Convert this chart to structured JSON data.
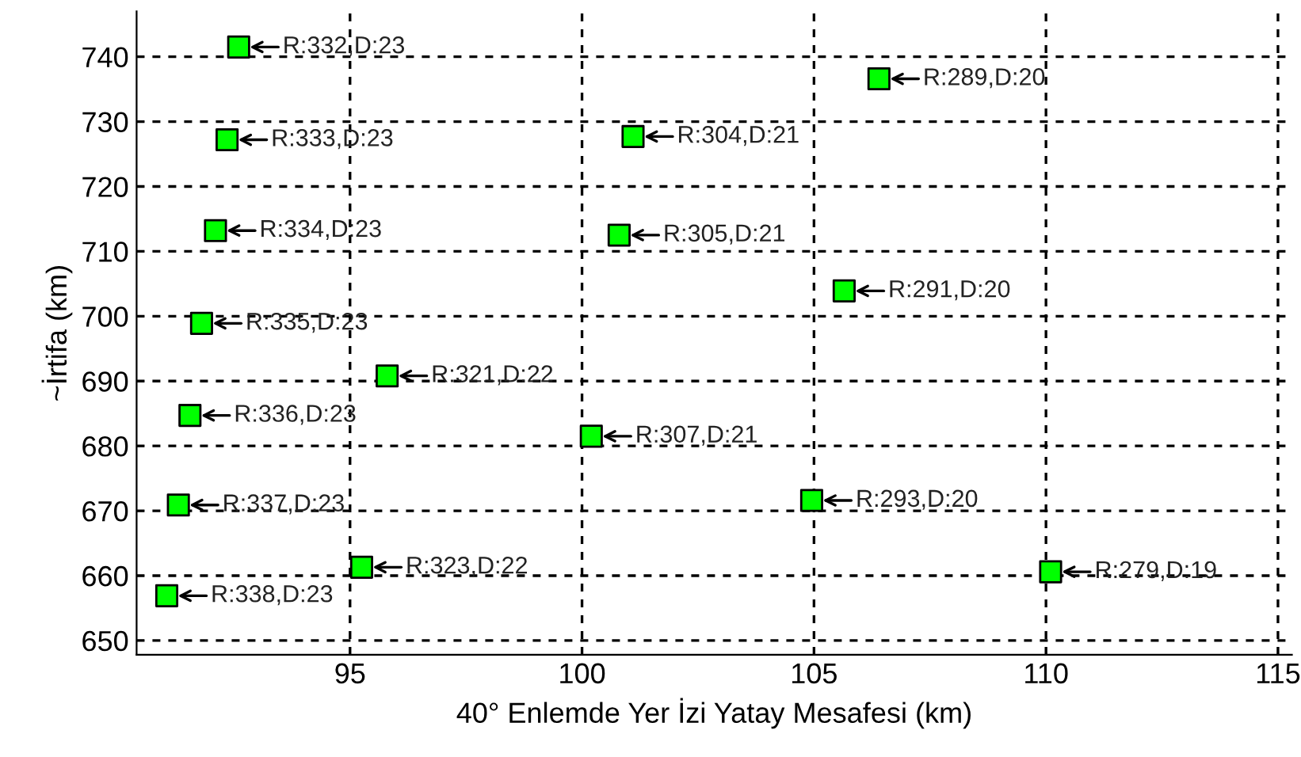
{
  "chart_data": {
    "type": "scatter",
    "xlabel": "40° Enlemde Yer İzi Yatay Mesafesi (km)",
    "ylabel": "~İrtifa (km)",
    "series": [
      {
        "color": "#00ff00",
        "x": [
          92.6,
          92.35,
          92.1,
          91.8,
          91.55,
          91.3,
          91.05,
          95.8,
          95.25,
          101.1,
          100.8,
          100.2,
          106.4,
          105.65,
          104.95,
          110.1
        ],
        "values": [
          741.5,
          727.2,
          713.2,
          698.9,
          684.7,
          670.9,
          656.9,
          690.8,
          661.3,
          727.7,
          712.5,
          681.5,
          736.6,
          703.9,
          671.6,
          660.6
        ]
      }
    ],
    "annotations": [
      {
        "text": "R:332,D:23",
        "x": 92.6,
        "y": 741.5
      },
      {
        "text": "R:333,D:23",
        "x": 92.35,
        "y": 727.2
      },
      {
        "text": "R:334,D:23",
        "x": 92.1,
        "y": 713.2
      },
      {
        "text": "R:335,D:23",
        "x": 91.8,
        "y": 698.9
      },
      {
        "text": "R:336,D:23",
        "x": 91.55,
        "y": 684.7
      },
      {
        "text": "R:337,D:23",
        "x": 91.3,
        "y": 670.9
      },
      {
        "text": "R:338,D:23",
        "x": 91.05,
        "y": 656.9
      },
      {
        "text": "R:321,D:22",
        "x": 95.8,
        "y": 690.8
      },
      {
        "text": "R:323,D:22",
        "x": 95.25,
        "y": 661.3
      },
      {
        "text": "R:304,D:21",
        "x": 101.1,
        "y": 727.7
      },
      {
        "text": "R:305,D:21",
        "x": 100.8,
        "y": 712.5
      },
      {
        "text": "R:307,D:21",
        "x": 100.2,
        "y": 681.5
      },
      {
        "text": "R:289,D:20",
        "x": 106.4,
        "y": 736.6
      },
      {
        "text": "R:291,D:20",
        "x": 105.65,
        "y": 703.9
      },
      {
        "text": "R:293,D:20",
        "x": 104.95,
        "y": 671.6
      },
      {
        "text": "R:279,D:19",
        "x": 110.1,
        "y": 660.6
      }
    ],
    "xlim": [
      90.4,
      115.3
    ],
    "ylim": [
      647.8,
      747
    ],
    "xticks": [
      95,
      100,
      105,
      110,
      115
    ],
    "yticks": [
      650,
      660,
      670,
      680,
      690,
      700,
      710,
      720,
      730,
      740
    ],
    "grid": true,
    "marker": "square",
    "legend": false
  }
}
